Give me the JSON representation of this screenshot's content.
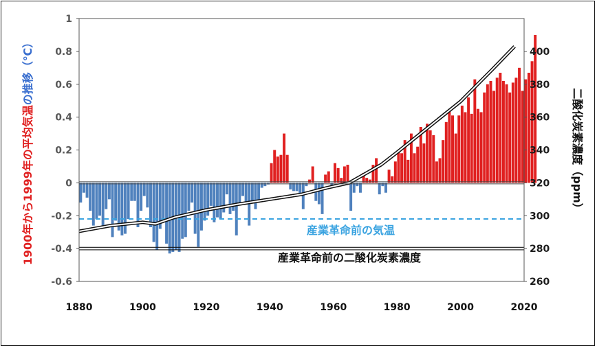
{
  "chart_data": {
    "type": "bar",
    "left_axis": {
      "title_part_red": "1900年から1999年の平均気温",
      "title_part_blue": "の推移（℃）",
      "ylim": [
        -0.6,
        1.0
      ],
      "ticks": [
        -0.6,
        -0.4,
        -0.2,
        0,
        0.2,
        0.4,
        0.6,
        0.8,
        1
      ],
      "tick_labels": [
        "-0.6",
        "-0.4",
        "-0.2",
        "0",
        "0.2",
        "0.4",
        "0.6",
        "0.8",
        "1"
      ]
    },
    "right_axis": {
      "title": "二酸化炭素濃度（ppm）",
      "ylim": [
        260,
        420
      ],
      "ticks": [
        260,
        280,
        300,
        320,
        340,
        360,
        380,
        400
      ],
      "tick_labels": [
        "260",
        "280",
        "300",
        "320",
        "340",
        "360",
        "380",
        "400"
      ]
    },
    "x_axis": {
      "xlim": [
        1880,
        2020
      ],
      "ticks": [
        1880,
        1900,
        1920,
        1940,
        1960,
        1980,
        2000,
        2020
      ],
      "tick_labels": [
        "1880",
        "1900",
        "1920",
        "1940",
        "1960",
        "1980",
        "2000",
        "2020"
      ]
    },
    "colors": {
      "positive": "#e02020",
      "negative": "#4f81bd",
      "dashed_line": "#3aa3e0",
      "co2_line": "#1a1a1a",
      "left_title_red": "#e02020",
      "left_title_blue": "#3a6fcf"
    },
    "temperature_series": {
      "start_year": 1880,
      "values": [
        -0.12,
        -0.06,
        -0.09,
        -0.17,
        -0.26,
        -0.22,
        -0.2,
        -0.26,
        -0.16,
        -0.1,
        -0.33,
        -0.23,
        -0.29,
        -0.32,
        -0.31,
        -0.22,
        -0.11,
        -0.11,
        -0.27,
        -0.17,
        -0.08,
        -0.15,
        -0.27,
        -0.36,
        -0.41,
        -0.28,
        -0.22,
        -0.37,
        -0.43,
        -0.42,
        -0.41,
        -0.42,
        -0.34,
        -0.33,
        -0.17,
        -0.12,
        -0.31,
        -0.39,
        -0.29,
        -0.23,
        -0.2,
        -0.14,
        -0.24,
        -0.21,
        -0.22,
        -0.18,
        -0.07,
        -0.19,
        -0.17,
        -0.32,
        -0.13,
        -0.08,
        -0.12,
        -0.26,
        -0.11,
        -0.16,
        -0.12,
        -0.03,
        -0.02,
        -0.01,
        0.12,
        0.2,
        0.16,
        0.17,
        0.3,
        0.17,
        -0.04,
        -0.05,
        -0.05,
        -0.07,
        -0.16,
        -0.02,
        0.02,
        0.1,
        -0.11,
        -0.13,
        -0.19,
        0.05,
        0.07,
        -0.03,
        0.12,
        0.09,
        0.03,
        0.1,
        0.11,
        -0.17,
        -0.06,
        -0.02,
        -0.06,
        0.06,
        0.03,
        0.02,
        0.11,
        0.15,
        -0.07,
        -0.02,
        -0.06,
        0.08,
        0.04,
        0.13,
        0.2,
        0.18,
        0.26,
        0.14,
        0.3,
        0.18,
        0.22,
        0.34,
        0.24,
        0.36,
        0.32,
        0.29,
        0.13,
        0.15,
        0.26,
        0.37,
        0.44,
        0.41,
        0.3,
        0.41,
        0.47,
        0.43,
        0.52,
        0.42,
        0.63,
        0.45,
        0.43,
        0.55,
        0.6,
        0.62,
        0.56,
        0.64,
        0.67,
        0.62,
        0.6,
        0.55,
        0.61,
        0.64,
        0.7,
        0.56,
        0.63,
        0.67,
        0.74,
        0.9
      ]
    },
    "co2_series": {
      "years": [
        1880,
        1890,
        1900,
        1904,
        1910,
        1920,
        1930,
        1940,
        1950,
        1958,
        1965,
        1975,
        1980,
        1990,
        2000,
        2010,
        2017
      ],
      "ppm": [
        290.5,
        294,
        296,
        295,
        299,
        303.5,
        307,
        310,
        313,
        317,
        320,
        331,
        338.5,
        354,
        369.5,
        389,
        403
      ]
    },
    "annotations": {
      "preindustrial_temp_label": "産業革命前の気温",
      "preindustrial_temp_value": -0.22,
      "preindustrial_co2_label": "産業革命前の二酸化炭素濃度",
      "preindustrial_co2_value": 280
    }
  }
}
